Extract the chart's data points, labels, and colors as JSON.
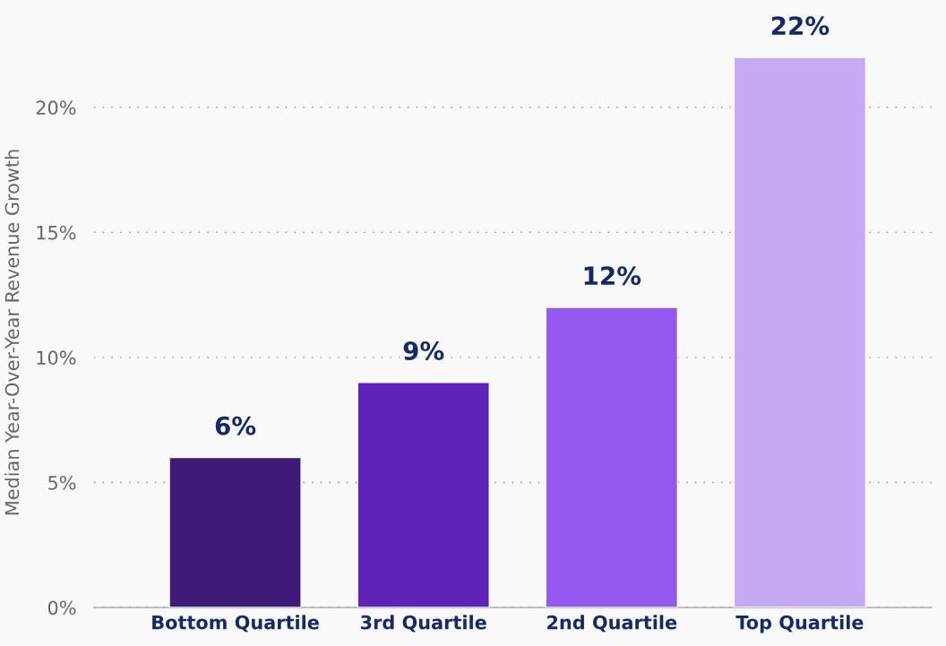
{
  "chart_data": {
    "type": "bar",
    "ylabel": "Median Year-Over-Year Revenue Growth",
    "categories": [
      "Bottom Quartile",
      "3rd Quartile",
      "2nd Quartile",
      "Top Quartile"
    ],
    "values": [
      6,
      9,
      12,
      22
    ],
    "colors": [
      "#3f1a78",
      "#5e22b8",
      "#9558f0",
      "#c5a9f3"
    ],
    "value_labels": [
      "6%",
      "9%",
      "12%",
      "22%"
    ],
    "ylim": [
      0,
      22
    ],
    "yticks": [
      {
        "value": 0,
        "label": "0%"
      },
      {
        "value": 5,
        "label": "5%"
      },
      {
        "value": 10,
        "label": "10%"
      },
      {
        "value": 15,
        "label": "15%"
      },
      {
        "value": 20,
        "label": "20%"
      }
    ],
    "grid": "y"
  }
}
